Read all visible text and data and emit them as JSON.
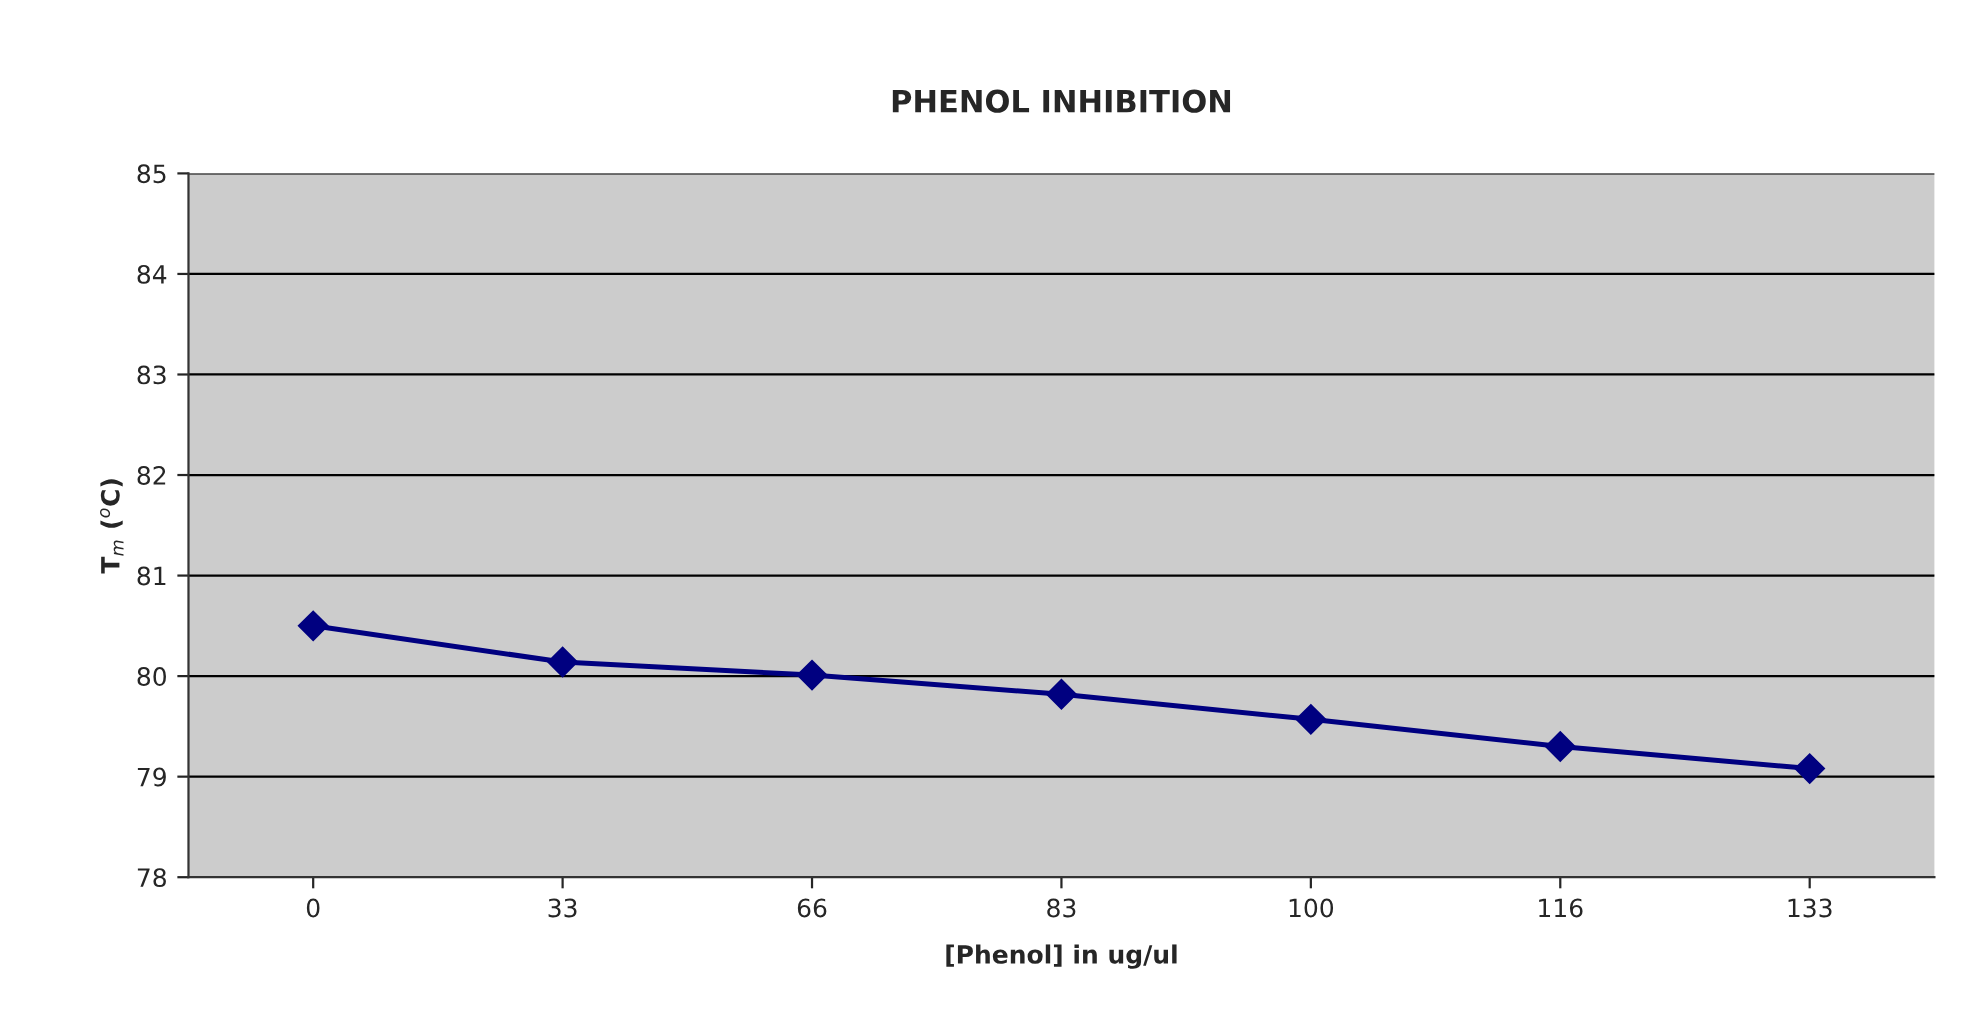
{
  "chart_data": {
    "type": "line",
    "title": "PHENOL INHIBITION",
    "xlabel": "[Phenol] in ug/ul",
    "ylabel": "T$_{m}$ ($^{o}$C)",
    "categories": [
      "0",
      "33",
      "66",
      "83",
      "100",
      "116",
      "133"
    ],
    "series": [
      {
        "color": "#000080",
        "values": [
          80.5,
          80.14,
          80.01,
          79.82,
          79.57,
          79.3,
          79.08
        ]
      }
    ],
    "ylim": [
      78,
      85
    ],
    "yticks": [
      78,
      79,
      80,
      81,
      82,
      83,
      84,
      85
    ],
    "grid": "y",
    "marker": "diamond",
    "line_style": "solid",
    "legend": false
  }
}
